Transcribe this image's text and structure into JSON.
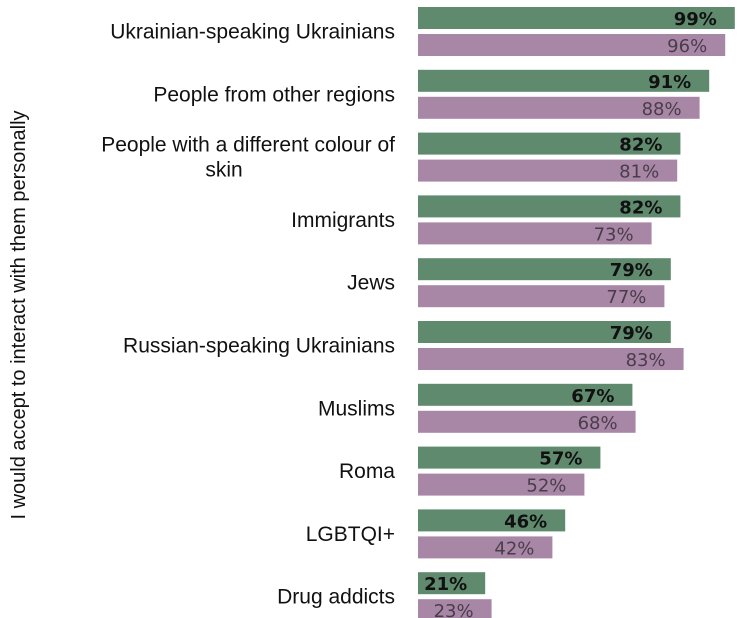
{
  "chart_data": {
    "type": "bar",
    "orientation": "horizontal",
    "ylabel": "I would accept to interact with them personally",
    "categories": [
      [
        "Ukrainian-speaking Ukrainians"
      ],
      [
        "People from other regions"
      ],
      [
        "People with a different colour of",
        "skin"
      ],
      [
        "Immigrants"
      ],
      [
        "Jews"
      ],
      [
        "Russian-speaking Ukrainians"
      ],
      [
        "Muslims"
      ],
      [
        "Roma"
      ],
      [
        "LGBTQI+"
      ],
      [
        "Drug addicts"
      ]
    ],
    "series": [
      {
        "color": "#5f8a6e",
        "values": [
          99,
          91,
          82,
          82,
          79,
          79,
          67,
          57,
          46,
          21
        ],
        "labels": [
          "99%",
          "91%",
          "82%",
          "82%",
          "79%",
          "79%",
          "67%",
          "57%",
          "46%",
          "21%"
        ]
      },
      {
        "color": "#a886a6",
        "values": [
          96,
          88,
          81,
          73,
          77,
          83,
          68,
          52,
          42,
          23
        ],
        "labels": [
          "96%",
          "88%",
          "81%",
          "73%",
          "77%",
          "83%",
          "68%",
          "52%",
          "42%",
          "23%"
        ]
      }
    ],
    "xlim": [
      0,
      100
    ],
    "grid": false,
    "legend": "none"
  }
}
